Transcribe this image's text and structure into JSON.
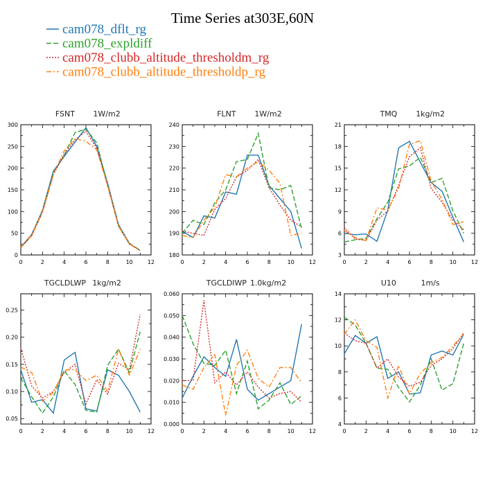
{
  "title": "Time Series at303E,60N",
  "legend": [
    {
      "label": "cam078_dflt_rg",
      "color": "#1f77b4"
    },
    {
      "label": "cam078_expldiff",
      "color": "#2ca02c"
    },
    {
      "label": "cam078_clubb_altitude_thresholdm_rg",
      "color": "#d62728"
    },
    {
      "label": "cam078_clubb_altitude_thresholdp_rg",
      "color": "#ff7f0e"
    }
  ],
  "chart_data": [
    {
      "type": "line",
      "title": "FSNT",
      "units": "1W/m2",
      "x": [
        0,
        1,
        2,
        3,
        4,
        5,
        6,
        7,
        8,
        9,
        10,
        11
      ],
      "xlim": [
        0,
        12
      ],
      "xticks": [
        "0",
        "2",
        "4",
        "6",
        "8",
        "10",
        "12"
      ],
      "ylim": [
        0,
        300
      ],
      "yticks": [
        "0",
        "50",
        "100",
        "150",
        "200",
        "250",
        "300"
      ],
      "series": [
        {
          "name": "cam078_dflt_rg",
          "style": "solid",
          "values": [
            18,
            47,
            103,
            193,
            227,
            260,
            293,
            250,
            165,
            70,
            27,
            10
          ]
        },
        {
          "name": "cam078_expldiff",
          "style": "dashed",
          "values": [
            17,
            45,
            100,
            188,
            230,
            282,
            290,
            258,
            160,
            68,
            26,
            11
          ]
        },
        {
          "name": "cam078_clubb_altitude_thresholdm_rg",
          "style": "dotted",
          "values": [
            17,
            44,
            98,
            185,
            232,
            265,
            285,
            245,
            160,
            66,
            25,
            10
          ]
        },
        {
          "name": "cam078_clubb_altitude_thresholdp_rg",
          "style": "dashdot",
          "values": [
            18,
            46,
            100,
            185,
            240,
            268,
            262,
            242,
            160,
            68,
            26,
            10
          ]
        }
      ]
    },
    {
      "type": "line",
      "title": "FLNT",
      "units": "1W/m2",
      "x": [
        0,
        1,
        2,
        3,
        4,
        5,
        6,
        7,
        8,
        9,
        10,
        11
      ],
      "xlim": [
        0,
        12
      ],
      "xticks": [
        "0",
        "2",
        "4",
        "6",
        "8",
        "10",
        "12"
      ],
      "ylim": [
        180,
        240
      ],
      "yticks": [
        "180",
        "190",
        "200",
        "210",
        "220",
        "230",
        "240"
      ],
      "series": [
        {
          "name": "cam078_dflt_rg",
          "style": "solid",
          "values": [
            191,
            188,
            198,
            197,
            209,
            208,
            226,
            226,
            212,
            206,
            200,
            183
          ]
        },
        {
          "name": "cam078_expldiff",
          "style": "dashed",
          "values": [
            190,
            196,
            194,
            204,
            210,
            223,
            224,
            236,
            211,
            210,
            212,
            192
          ]
        },
        {
          "name": "cam078_clubb_altitude_thresholdm_rg",
          "style": "dotted",
          "values": [
            191,
            190,
            189,
            201,
            206,
            216,
            219,
            224,
            211,
            203,
            196,
            193
          ]
        },
        {
          "name": "cam078_clubb_altitude_thresholdp_rg",
          "style": "dashdot",
          "values": [
            189,
            188,
            196,
            202,
            217,
            216,
            220,
            223,
            219,
            213,
            189,
            190
          ]
        }
      ]
    },
    {
      "type": "line",
      "title": "TMQ",
      "units": "1kg/m2",
      "x": [
        0,
        1,
        2,
        3,
        4,
        5,
        6,
        7,
        8,
        9,
        10,
        11
      ],
      "xlim": [
        0,
        12
      ],
      "xticks": [
        "0",
        "2",
        "4",
        "6",
        "8",
        "10",
        "12"
      ],
      "ylim": [
        3,
        21
      ],
      "yticks": [
        "3",
        "6",
        "9",
        "12",
        "15",
        "18",
        "21"
      ],
      "series": [
        {
          "name": "cam078_dflt_rg",
          "style": "solid",
          "values": [
            6.0,
            5.8,
            5.9,
            4.9,
            9.2,
            17.8,
            18.7,
            15.8,
            13.0,
            11.8,
            8.2,
            4.8
          ]
        },
        {
          "name": "cam078_expldiff",
          "style": "dashed",
          "values": [
            4.8,
            5.1,
            5.3,
            8.0,
            10.3,
            14.9,
            15.3,
            16.5,
            13.0,
            13.6,
            9.1,
            6.0
          ]
        },
        {
          "name": "cam078_clubb_altitude_thresholdm_rg",
          "style": "dotted",
          "values": [
            6.8,
            5.2,
            5.0,
            7.8,
            9.1,
            12.6,
            16.6,
            17.8,
            12.2,
            10.3,
            7.8,
            6.5
          ]
        },
        {
          "name": "cam078_clubb_altitude_thresholdp_rg",
          "style": "dashdot",
          "values": [
            6.4,
            5.4,
            5.0,
            9.5,
            9.2,
            12.2,
            18.3,
            18.8,
            13.2,
            10.7,
            7.2,
            7.6
          ]
        }
      ]
    },
    {
      "type": "line",
      "title": "TGCLDLWP",
      "units": "1kg/m2",
      "x": [
        0,
        1,
        2,
        3,
        4,
        5,
        6,
        7,
        8,
        9,
        10,
        11
      ],
      "xlim": [
        0,
        12
      ],
      "xticks": [
        "0",
        "2",
        "4",
        "6",
        "8",
        "10",
        "12"
      ],
      "ylim": [
        0.04,
        0.28
      ],
      "yticks": [
        "0.05",
        "0.10",
        "0.15",
        "0.20",
        "0.25"
      ],
      "series": [
        {
          "name": "cam078_dflt_rg",
          "style": "solid",
          "values": [
            0.14,
            0.08,
            0.085,
            0.06,
            0.158,
            0.172,
            0.068,
            0.064,
            0.14,
            0.13,
            0.1,
            0.062
          ]
        },
        {
          "name": "cam078_expldiff",
          "style": "dashed",
          "values": [
            0.125,
            0.09,
            0.06,
            0.09,
            0.138,
            0.113,
            0.065,
            0.062,
            0.148,
            0.178,
            0.135,
            0.21
          ]
        },
        {
          "name": "cam078_clubb_altitude_thresholdm_rg",
          "style": "dotted",
          "values": [
            0.18,
            0.11,
            0.088,
            0.1,
            0.135,
            0.15,
            0.077,
            0.122,
            0.095,
            0.152,
            0.14,
            0.242
          ]
        },
        {
          "name": "cam078_clubb_altitude_thresholdp_rg",
          "style": "dashdot",
          "values": [
            0.145,
            0.135,
            0.082,
            0.098,
            0.14,
            0.14,
            0.12,
            0.13,
            0.1,
            0.178,
            0.13,
            0.178
          ]
        }
      ]
    },
    {
      "type": "line",
      "title": "TGCLDIWP",
      "units": "1.0kg/m2",
      "x": [
        0,
        1,
        2,
        3,
        4,
        5,
        6,
        7,
        8,
        9,
        10,
        11
      ],
      "xlim": [
        0,
        12
      ],
      "xticks": [
        "0",
        "2",
        "4",
        "6",
        "8",
        "10",
        "12"
      ],
      "ylim": [
        0,
        0.06
      ],
      "yticks": [
        "0.000",
        "0.010",
        "0.020",
        "0.030",
        "0.040",
        "0.050",
        "0.060"
      ],
      "series": [
        {
          "name": "cam078_dflt_rg",
          "style": "solid",
          "values": [
            0.012,
            0.022,
            0.031,
            0.026,
            0.022,
            0.039,
            0.016,
            0.011,
            0.014,
            0.017,
            0.02,
            0.046
          ]
        },
        {
          "name": "cam078_expldiff",
          "style": "dashed",
          "values": [
            0.05,
            0.037,
            0.028,
            0.027,
            0.034,
            0.014,
            0.029,
            0.007,
            0.011,
            0.019,
            0.009,
            0.013
          ]
        },
        {
          "name": "cam078_clubb_altitude_thresholdm_rg",
          "style": "dotted",
          "values": [
            0.02,
            0.02,
            0.057,
            0.019,
            0.024,
            0.018,
            0.024,
            0.017,
            0.012,
            0.014,
            0.015,
            0.01
          ]
        },
        {
          "name": "cam078_clubb_altitude_thresholdp_rg",
          "style": "dashdot",
          "values": [
            0.018,
            0.016,
            0.026,
            0.032,
            0.004,
            0.027,
            0.034,
            0.021,
            0.017,
            0.026,
            0.026,
            0.019
          ]
        }
      ]
    },
    {
      "type": "line",
      "title": "U10",
      "units": "1m/s",
      "x": [
        0,
        1,
        2,
        3,
        4,
        5,
        6,
        7,
        8,
        9,
        10,
        11
      ],
      "xlim": [
        0,
        12
      ],
      "xticks": [
        "0",
        "2",
        "4",
        "6",
        "8",
        "10",
        "12"
      ],
      "ylim": [
        4,
        14
      ],
      "yticks": [
        "4",
        "6",
        "8",
        "10",
        "12",
        "14"
      ],
      "series": [
        {
          "name": "cam078_dflt_rg",
          "style": "solid",
          "values": [
            9.4,
            10.8,
            10.2,
            10.7,
            7.5,
            8.0,
            6.3,
            6.4,
            9.3,
            9.6,
            9.3,
            10.9
          ]
        },
        {
          "name": "cam078_expldiff",
          "style": "dashed",
          "values": [
            12.2,
            11.6,
            10.2,
            8.3,
            8.2,
            6.8,
            5.7,
            7.0,
            9.0,
            6.6,
            7.1,
            10.2
          ]
        },
        {
          "name": "cam078_clubb_altitude_thresholdm_rg",
          "style": "dotted",
          "values": [
            11.0,
            10.4,
            10.2,
            8.3,
            9.0,
            7.6,
            6.9,
            7.2,
            8.5,
            9.0,
            9.8,
            11.0
          ]
        },
        {
          "name": "cam078_clubb_altitude_thresholdp_rg",
          "style": "dashdot",
          "values": [
            10.9,
            12.0,
            10.4,
            9.9,
            6.0,
            8.5,
            6.3,
            7.9,
            8.7,
            9.1,
            10.0,
            10.9
          ]
        }
      ]
    }
  ]
}
